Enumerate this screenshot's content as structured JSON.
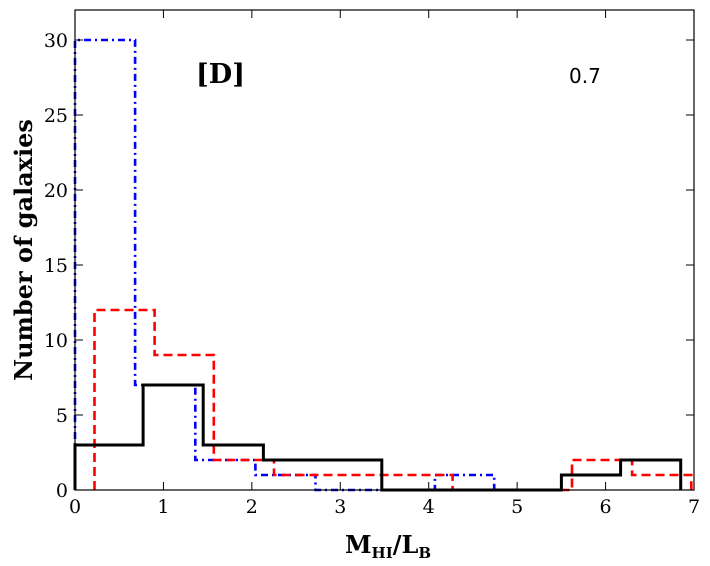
{
  "chart_data": {
    "type": "histogram",
    "xlabel": "M_HI/L_B",
    "xlabel_main": "M",
    "xlabel_sub1": "HI",
    "xlabel_mid": "/L",
    "xlabel_sub2": "B",
    "ylabel": "Number of galaxies",
    "xlim": [
      0,
      7
    ],
    "ylim": [
      0,
      32
    ],
    "xticks": [
      0,
      1,
      2,
      3,
      4,
      5,
      6,
      7
    ],
    "yticks": [
      0,
      5,
      10,
      15,
      20,
      25,
      30
    ],
    "xtick_labels": [
      "0",
      "1",
      "2",
      "3",
      "4",
      "5",
      "6",
      "7"
    ],
    "ytick_labels": [
      "0",
      "5",
      "10",
      "15",
      "20",
      "25",
      "30"
    ],
    "panel_label": "[D]",
    "annotation": "0.7",
    "series": [
      {
        "name": "black-solid",
        "color": "#000000",
        "style": "solid",
        "edges": [
          0.0,
          0.77,
          1.45,
          2.13,
          2.8,
          3.47,
          4.15,
          4.82,
          5.5,
          6.17,
          6.85
        ],
        "counts": [
          3,
          7,
          3,
          2,
          2,
          0,
          0,
          0,
          1,
          2
        ]
      },
      {
        "name": "red-dashed",
        "color": "#ff0000",
        "style": "dashed",
        "edges": [
          0.22,
          0.9,
          1.57,
          2.25,
          2.92,
          3.6,
          4.27,
          4.95,
          5.62,
          6.3,
          6.97
        ],
        "counts": [
          12,
          9,
          2,
          1,
          1,
          1,
          0,
          0,
          2,
          1
        ]
      },
      {
        "name": "blue-dashdot",
        "color": "#0000ff",
        "style": "dashdot",
        "edges": [
          0.0,
          0.68,
          1.36,
          2.04,
          2.72,
          3.4,
          4.07,
          4.74
        ],
        "counts": [
          30,
          7,
          2,
          1,
          0,
          0,
          1
        ]
      }
    ]
  }
}
